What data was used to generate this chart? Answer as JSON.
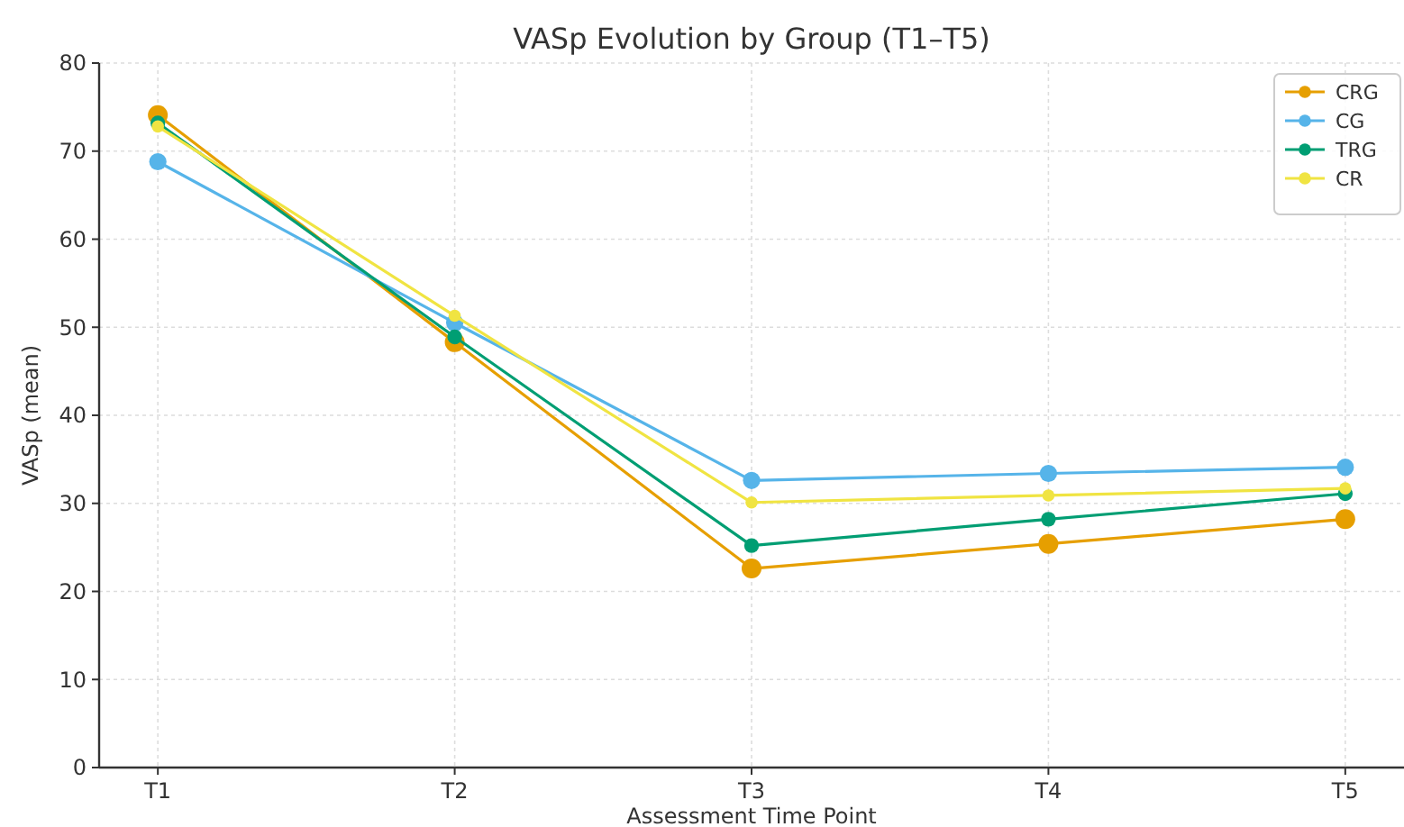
{
  "chart_data": {
    "type": "line",
    "title": "VASp Evolution by Group (T1–T5)",
    "xlabel": "Assessment Time Point",
    "ylabel": "VASp (mean)",
    "categories": [
      "T1",
      "T2",
      "T3",
      "T4",
      "T5"
    ],
    "series": [
      {
        "name": "CRG",
        "color": "#e69f00",
        "values": [
          74.1,
          48.3,
          22.6,
          25.4,
          28.2
        ]
      },
      {
        "name": "CG",
        "color": "#56b4e9",
        "values": [
          68.8,
          50.5,
          32.6,
          33.4,
          34.1
        ]
      },
      {
        "name": "TRG",
        "color": "#009e73",
        "values": [
          73.2,
          48.9,
          25.2,
          28.2,
          31.1
        ]
      },
      {
        "name": "CR",
        "color": "#f0e442",
        "values": [
          72.8,
          51.3,
          30.1,
          30.9,
          31.7
        ]
      }
    ],
    "ylim": [
      0,
      80
    ],
    "yticks": [
      0,
      10,
      20,
      30,
      40,
      50,
      60,
      70,
      80
    ],
    "grid": true,
    "legend": "top right",
    "marker": "circle",
    "line_style": "solid"
  }
}
